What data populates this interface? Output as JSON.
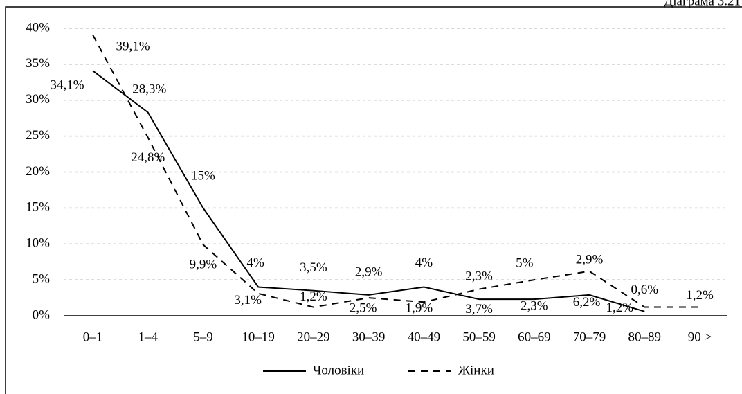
{
  "chart_data": {
    "type": "line",
    "annotation": "Діаграма 3.21",
    "categories": [
      "0–1",
      "1–4",
      "5–9",
      "10–19",
      "20–29",
      "30–39",
      "40–49",
      "50–59",
      "60–69",
      "70–79",
      "80–89",
      "90 >"
    ],
    "series": [
      {
        "name": "Чоловіки",
        "color": "#000000",
        "dash": "solid",
        "values": [
          34.1,
          28.3,
          15,
          4,
          3.5,
          2.9,
          4,
          2.3,
          2.3,
          2.9,
          0.6,
          null
        ],
        "value_labels": [
          "34,1%",
          "28,3%",
          "15%",
          "4%",
          "3,5%",
          "2,9%",
          "4%",
          "2,3%",
          "2,3%",
          "2,9%",
          "0,6%",
          null
        ]
      },
      {
        "name": "Жінки",
        "color": "#000000",
        "dash": "dashed",
        "values": [
          39.1,
          24.8,
          9.9,
          3.1,
          1.2,
          2.5,
          1.9,
          3.7,
          5,
          6.2,
          1.2,
          1.2
        ],
        "value_labels": [
          "39,1%",
          "24,8%",
          "9,9%",
          "3,1%",
          "1,2%",
          "2,5%",
          "1,9%",
          "3,7%",
          "5%",
          "6,2%",
          "1,2%",
          "1,2%"
        ]
      }
    ],
    "ylim": [
      0,
      40
    ],
    "yticks": [
      {
        "value": 0,
        "label": "0%"
      },
      {
        "value": 5,
        "label": "5%"
      },
      {
        "value": 10,
        "label": "10%"
      },
      {
        "value": 15,
        "label": "15%"
      },
      {
        "value": 20,
        "label": "20%"
      },
      {
        "value": 25,
        "label": "25%"
      },
      {
        "value": 30,
        "label": "30%"
      },
      {
        "value": 35,
        "label": "35%"
      },
      {
        "value": 40,
        "label": "40%"
      }
    ],
    "grid": true,
    "legend": "bottom"
  }
}
